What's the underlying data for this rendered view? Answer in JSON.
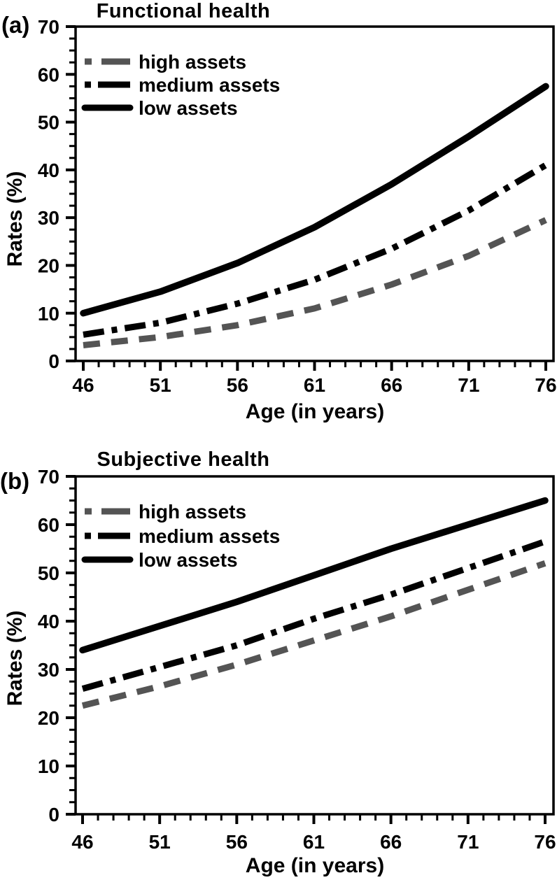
{
  "figure": {
    "background": "#ffffff",
    "axis_color": "#000000"
  },
  "chart_data": [
    {
      "type": "line",
      "panel_label": "(a)",
      "title": "Functional health",
      "xlabel": "Age (in years)",
      "ylabel": "Rates (%)",
      "x": [
        46,
        51,
        56,
        61,
        66,
        71,
        76
      ],
      "xlim": [
        46,
        76
      ],
      "ylim": [
        0,
        70
      ],
      "x_ticks": [
        46,
        51,
        56,
        61,
        66,
        71,
        76
      ],
      "y_ticks": [
        0,
        10,
        20,
        30,
        40,
        50,
        60,
        70
      ],
      "x_minor_step": 1,
      "y_minor_step": 2.5,
      "grid": false,
      "legend_position": "top-left-inside",
      "series": [
        {
          "name": "high assets",
          "style": "dashed",
          "color": "#545454",
          "values": [
            3.3,
            5,
            7.5,
            11,
            16,
            22,
            29.5
          ]
        },
        {
          "name": "medium assets",
          "style": "dash-dot",
          "color": "#000000",
          "values": [
            5.5,
            8,
            12,
            17,
            23.5,
            31.5,
            41
          ]
        },
        {
          "name": "low assets",
          "style": "solid",
          "color": "#000000",
          "values": [
            10,
            14.5,
            20.5,
            28,
            37,
            47,
            57.5
          ]
        }
      ]
    },
    {
      "type": "line",
      "panel_label": "(b)",
      "title": "Subjective health",
      "xlabel": "Age (in years)",
      "ylabel": "Rates (%)",
      "x": [
        46,
        51,
        56,
        61,
        66,
        71,
        76
      ],
      "xlim": [
        46,
        76
      ],
      "ylim": [
        0,
        70
      ],
      "x_ticks": [
        46,
        51,
        56,
        61,
        66,
        71,
        76
      ],
      "y_ticks": [
        0,
        10,
        20,
        30,
        40,
        50,
        60,
        70
      ],
      "x_minor_step": 1,
      "y_minor_step": 2.5,
      "grid": false,
      "legend_position": "top-left-inside",
      "series": [
        {
          "name": "high assets",
          "style": "dashed",
          "color": "#545454",
          "values": [
            22.5,
            26.5,
            31,
            36,
            41,
            46.5,
            52
          ]
        },
        {
          "name": "medium assets",
          "style": "dash-dot",
          "color": "#000000",
          "values": [
            26,
            30.5,
            35,
            40.5,
            45.5,
            51,
            56.5
          ]
        },
        {
          "name": "low assets",
          "style": "solid",
          "color": "#000000",
          "values": [
            34,
            39,
            44,
            49.5,
            55,
            60,
            65
          ]
        }
      ]
    }
  ]
}
